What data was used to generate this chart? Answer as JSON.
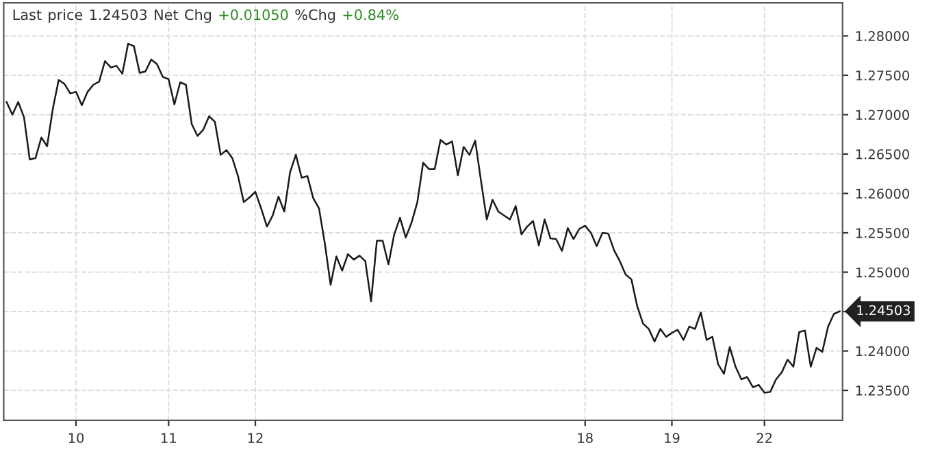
{
  "chart_data": {
    "type": "line",
    "title": "Last price 1.24503 Net Chg +0.01050 %Chg +0.84%",
    "annotations": [
      "1.24503"
    ],
    "categories": [
      null,
      null,
      null,
      null,
      null,
      null,
      null,
      null,
      null,
      null,
      null,
      null,
      "10",
      null,
      null,
      null,
      null,
      null,
      null,
      null,
      null,
      null,
      null,
      null,
      null,
      null,
      null,
      null,
      "11",
      null,
      null,
      null,
      null,
      null,
      null,
      null,
      null,
      null,
      null,
      null,
      null,
      null,
      null,
      "12",
      null,
      null,
      null,
      null,
      null,
      null,
      null,
      null,
      null,
      null,
      null,
      null,
      null,
      null,
      null,
      null,
      null,
      null,
      null,
      null,
      null,
      null,
      null,
      null,
      null,
      null,
      null,
      null,
      null,
      null,
      null,
      null,
      null,
      null,
      null,
      null,
      null,
      null,
      null,
      null,
      null,
      null,
      null,
      null,
      null,
      null,
      null,
      null,
      null,
      null,
      null,
      null,
      null,
      null,
      null,
      null,
      "18",
      null,
      null,
      null,
      null,
      null,
      null,
      null,
      null,
      null,
      null,
      null,
      null,
      null,
      null,
      "19",
      null,
      null,
      null,
      null,
      null,
      null,
      null,
      null,
      null,
      null,
      null,
      null,
      null,
      null,
      null,
      "22",
      null,
      null,
      null,
      null,
      null,
      null,
      null,
      null,
      null,
      null,
      null,
      null,
      null
    ],
    "series": [
      {
        "color": "#1a1a1a",
        "values": [
          1.2716,
          1.27,
          1.2716,
          1.2697,
          1.2643,
          1.2645,
          1.2671,
          1.266,
          1.2708,
          1.2744,
          1.2739,
          1.2727,
          1.2729,
          1.2712,
          1.2729,
          1.2738,
          1.2742,
          1.2768,
          1.276,
          1.2762,
          1.2752,
          1.279,
          1.2787,
          1.2753,
          1.2755,
          1.277,
          1.2764,
          1.2748,
          1.2745,
          1.2713,
          1.2741,
          1.2738,
          1.2688,
          1.2673,
          1.2681,
          1.2698,
          1.2691,
          1.2649,
          1.2655,
          1.2645,
          1.2622,
          1.2589,
          1.2595,
          1.2602,
          1.2581,
          1.2558,
          1.2572,
          1.2596,
          1.2577,
          1.2627,
          1.2649,
          1.262,
          1.2622,
          1.2594,
          1.2581,
          1.2537,
          1.2484,
          1.252,
          1.2502,
          1.2523,
          1.2516,
          1.2521,
          1.2514,
          1.2463,
          1.254,
          1.254,
          1.251,
          1.2548,
          1.2569,
          1.2544,
          1.2563,
          1.2589,
          1.2639,
          1.2631,
          1.2631,
          1.2668,
          1.2662,
          1.2666,
          1.2623,
          1.2659,
          1.2649,
          1.2667,
          1.2616,
          1.2567,
          1.2592,
          1.2577,
          1.2572,
          1.2567,
          1.2584,
          1.2548,
          1.2558,
          1.2565,
          1.2534,
          1.2567,
          1.2543,
          1.2542,
          1.2527,
          1.2556,
          1.2542,
          1.2555,
          1.2559,
          1.255,
          1.2533,
          1.255,
          1.2549,
          1.2528,
          1.2514,
          1.2497,
          1.2491,
          1.2457,
          1.2435,
          1.2428,
          1.2412,
          1.2428,
          1.2418,
          1.2423,
          1.2427,
          1.2414,
          1.2431,
          1.2428,
          1.2449,
          1.2414,
          1.2418,
          1.2383,
          1.2371,
          1.2405,
          1.238,
          1.2364,
          1.2367,
          1.2354,
          1.2357,
          1.2347,
          1.2348,
          1.2364,
          1.2373,
          1.2389,
          1.238,
          1.2424,
          1.2426,
          1.238,
          1.2404,
          1.2399,
          1.2431,
          1.2447,
          1.24503
        ]
      }
    ],
    "ylim": [
      1.2312,
      1.2842
    ],
    "yticks": [
      {
        "value": 1.235,
        "label": "1.23500"
      },
      {
        "value": 1.24,
        "label": "1.24000"
      },
      {
        "value": 1.245,
        "label": null
      },
      {
        "value": 1.25,
        "label": "1.25000"
      },
      {
        "value": 1.255,
        "label": "1.25500"
      },
      {
        "value": 1.26,
        "label": "1.26000"
      },
      {
        "value": 1.265,
        "label": "1.26500"
      },
      {
        "value": 1.27,
        "label": "1.27000"
      },
      {
        "value": 1.275,
        "label": "1.27500"
      },
      {
        "value": 1.28,
        "label": "1.28000"
      }
    ],
    "grid": true,
    "marker": "none",
    "line_style": "solid",
    "legend": false
  }
}
